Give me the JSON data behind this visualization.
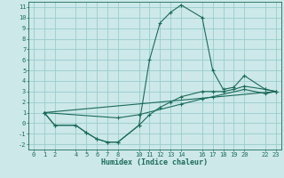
{
  "xlabel": "Humidex (Indice chaleur)",
  "bg_color": "#cce8e8",
  "grid_color": "#99cccc",
  "line_color": "#1a6b5a",
  "xlim": [
    -0.5,
    23.5
  ],
  "ylim": [
    -2.5,
    11.5
  ],
  "xticks": [
    0,
    1,
    2,
    4,
    5,
    6,
    7,
    8,
    10,
    11,
    12,
    13,
    14,
    16,
    17,
    18,
    19,
    20,
    22,
    23
  ],
  "yticks": [
    -2,
    -1,
    0,
    1,
    2,
    3,
    4,
    5,
    6,
    7,
    8,
    9,
    10,
    11
  ],
  "curve_main_x": [
    1,
    2,
    4,
    5,
    6,
    7,
    8,
    10,
    11,
    12,
    13,
    14,
    16,
    17,
    18,
    19,
    20,
    22,
    23
  ],
  "curve_main_y": [
    1.0,
    -0.2,
    -0.2,
    -0.9,
    -1.5,
    -1.8,
    -1.8,
    -0.2,
    6.0,
    9.5,
    10.5,
    11.2,
    10.0,
    5.0,
    3.2,
    3.4,
    4.5,
    3.2,
    3.0
  ],
  "curve_flat_x": [
    1,
    2,
    4,
    5,
    6,
    7,
    8,
    10,
    11,
    12,
    13,
    14,
    16,
    17,
    18,
    19,
    20,
    22,
    23
  ],
  "curve_flat_y": [
    1.0,
    -0.2,
    -0.2,
    -0.9,
    -1.5,
    -1.8,
    -1.8,
    -0.2,
    0.8,
    1.5,
    2.0,
    2.5,
    3.0,
    3.0,
    3.0,
    3.2,
    3.5,
    3.2,
    3.0
  ],
  "curve_diag_x": [
    1,
    8,
    10,
    14,
    16,
    17,
    20,
    22,
    23
  ],
  "curve_diag_y": [
    1.0,
    0.5,
    0.8,
    1.8,
    2.3,
    2.5,
    3.2,
    2.8,
    3.0
  ],
  "curve_line_x": [
    1,
    23
  ],
  "curve_line_y": [
    1.0,
    3.0
  ]
}
